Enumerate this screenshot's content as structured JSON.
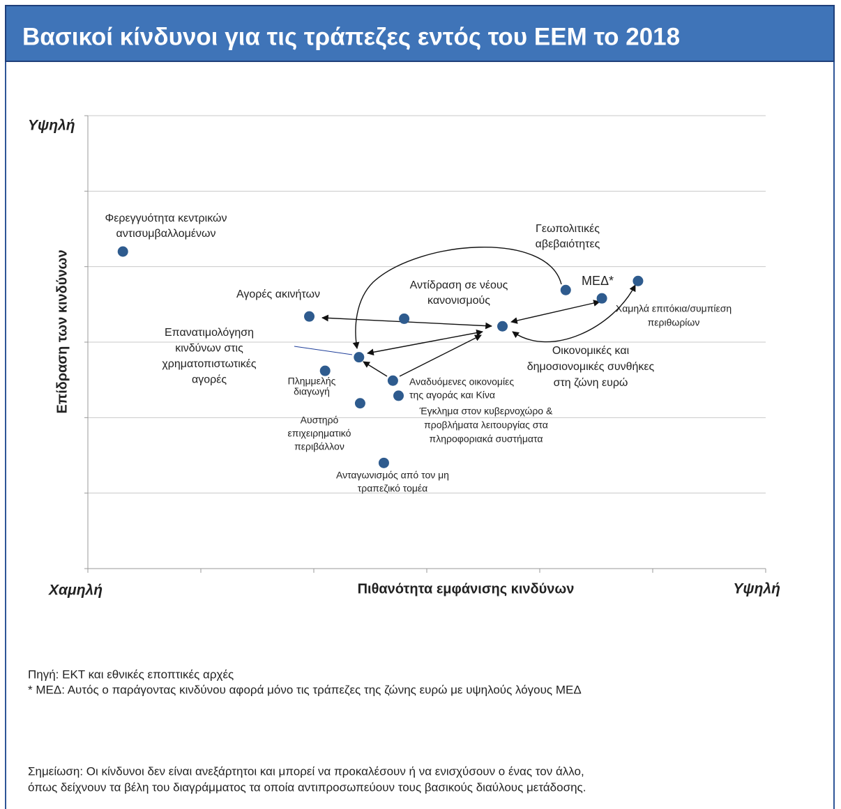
{
  "chart_data": {
    "type": "scatter",
    "title": "Βασικοί κίνδυνοι για τις τράπεζες εντός του ΕΕΜ το 2018",
    "xlabel": "Πιθανότητα εμφάνισης κινδύνων",
    "ylabel": "Επίδραση των κινδύνων",
    "x_low_label": "Χαμηλή",
    "x_high_label": "Υψηλή",
    "y_high_label": "Υψηλή",
    "xlim": [
      0,
      6
    ],
    "ylim": [
      0,
      6
    ],
    "xticks": [
      0,
      1,
      2,
      3,
      4,
      5,
      6
    ],
    "yticks": [
      0,
      1,
      2,
      3,
      4,
      5,
      6
    ],
    "grid": true,
    "color": "#2e5b8e",
    "labels": [
      [
        "Φερεγγυότητα κεντρικών",
        "αντισυμβαλλομένων"
      ],
      [
        "Αγορές ακινήτων"
      ],
      [
        "Αντίδραση σε νέους",
        "κανονισμούς"
      ],
      [
        "Γεωπολιτικές",
        "αβεβαιότητες"
      ],
      [
        "ΜΕΔ*"
      ],
      [
        "Χαμηλά επιτόκια/συμπίεση",
        "περιθωρίων"
      ],
      [
        "Οικονομικές και",
        "δημοσιονομικές συνθήκες",
        "στη ζώνη ευρώ"
      ],
      [
        "Επανατιμολόγηση",
        "κινδύνων στις",
        "χρηματοπιστωτικές",
        "αγορές"
      ],
      [
        "Πλημμελής",
        "διαγωγή"
      ],
      [
        "Αναδυόμενες οικονομίες",
        "της αγοράς και Κίνα"
      ],
      [
        "Έγκλημα στον κυβερνοχώρο &",
        "προβλήματα λειτουργίας στα",
        "πληροφοριακά συστήματα"
      ],
      [
        "Αυστηρό",
        "επιχειρηματικό",
        "περιβάλλον"
      ],
      [
        "Ανταγωνισμός από τον μη",
        "τραπεζικό τομέα"
      ]
    ],
    "x": [
      0.31,
      1.96,
      2.8,
      4.23,
      4.55,
      4.87,
      3.67,
      2.4,
      2.1,
      2.7,
      2.75,
      2.41,
      2.62
    ],
    "values": [
      4.2,
      3.34,
      3.31,
      3.69,
      3.58,
      3.81,
      3.21,
      2.8,
      2.62,
      2.49,
      2.29,
      2.19,
      1.4
    ]
  },
  "footer": {
    "source": "Πηγή: ΕΚΤ και εθνικές εποπτικές αρχές",
    "footnote": "* ΜΕΔ: Αυτός ο παράγοντας κινδύνου αφορά μόνο τις τράπεζες της ζώνης ευρώ με υψηλούς λόγους ΜΕΔ",
    "note": [
      "Σημείωση: Οι κίνδυνοι δεν είναι ανεξάρτητοι και μπορεί να προκαλέσουν ή να ενισχύσουν ο ένας τον άλλο,",
      "όπως δείχνουν τα βέλη του διαγράμματος τα οποία αντιπροσωπεύουν τους βασικούς διαύλους μετάδοσης."
    ]
  }
}
